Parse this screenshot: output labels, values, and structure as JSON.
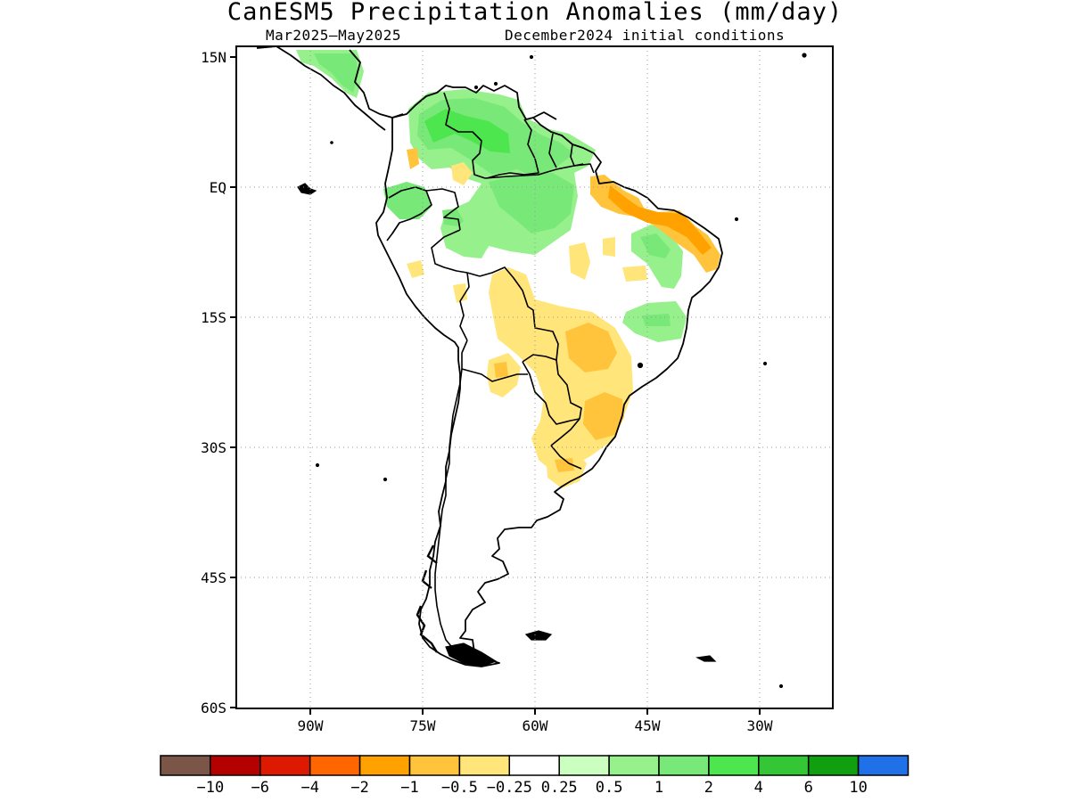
{
  "title": "CanESM5 Precipitation Anomalies (mm/day)",
  "subtitle_left": "Mar2025–May2025",
  "subtitle_right": "December2024 initial conditions",
  "lat_labels": [
    "15N",
    "EQ",
    "15S",
    "30S",
    "45S",
    "60S"
  ],
  "lon_labels": [
    "90W",
    "75W",
    "60W",
    "45W",
    "30W"
  ],
  "colorbar": {
    "colors": [
      "#7a5548",
      "#b50000",
      "#dd1a00",
      "#ff6600",
      "#ffa200",
      "#ffc43c",
      "#ffe57a",
      "#ffffff",
      "#caffc0",
      "#96f08c",
      "#78e878",
      "#4ee64e",
      "#34c634",
      "#0f9f0f",
      "#2070e8"
    ],
    "labels": [
      "−10",
      "−6",
      "−4",
      "−2",
      "−1",
      "−0.5",
      "−0.25",
      "0.25",
      "0.5",
      "1",
      "2",
      "4",
      "6",
      "10"
    ]
  },
  "grid": "dotted"
}
